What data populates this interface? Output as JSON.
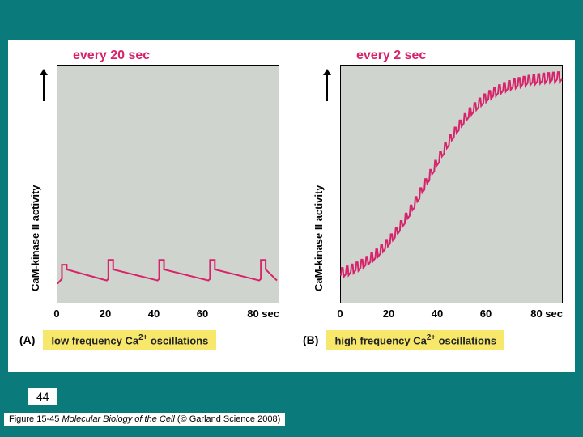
{
  "background_color": "#0a7a7a",
  "figure_bg": "#ffffff",
  "plot_bg": "#cfd4cf",
  "trace_color": "#d6236a",
  "trace_width": 2,
  "caption_bg": "#f7e86b",
  "ylabel": "CaM-kinase II activity",
  "xticks": [
    "0",
    "20",
    "40",
    "60",
    "80 sec"
  ],
  "panelA": {
    "title": "every 20 sec",
    "letter": "(A)",
    "caption": "low frequency Ca²⁺ oscillations",
    "baseline": 0.92,
    "spikes": [
      {
        "x": 0.02,
        "h": 0.08,
        "decay_to": 0.06
      },
      {
        "x": 0.23,
        "h": 0.1,
        "decay_to": 0.06
      },
      {
        "x": 0.46,
        "h": 0.1,
        "decay_to": 0.06
      },
      {
        "x": 0.69,
        "h": 0.1,
        "decay_to": 0.06
      },
      {
        "x": 0.92,
        "h": 0.1,
        "decay_to": 0.06
      }
    ]
  },
  "panelB": {
    "title": "every 2 sec",
    "letter": "(B)",
    "caption": "high frequency Ca²⁺ oscillations",
    "n_spikes": 45,
    "sigmoid": {
      "start_y": 0.92,
      "end_y": 0.05,
      "mid_x": 0.4,
      "steepness": 8
    },
    "spike_h": 0.03
  },
  "page_number": "44",
  "credit_prefix": "Figure 15-45",
  "credit_title": "Molecular Biology of the Cell",
  "credit_suffix": "(© Garland Science 2008)"
}
